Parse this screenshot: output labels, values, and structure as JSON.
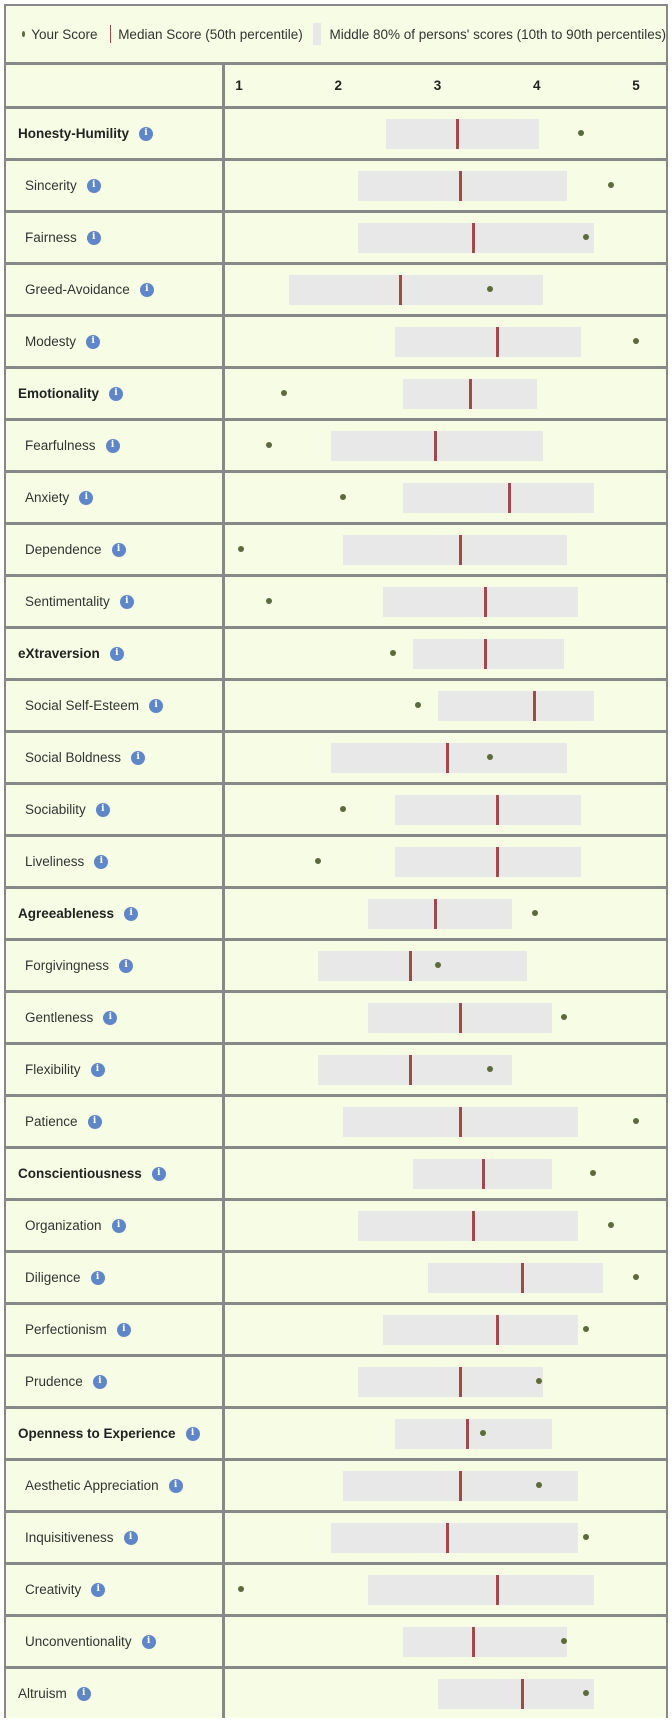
{
  "legend": {
    "your_score": "Your Score",
    "median": "Median Score (50th percentile)",
    "middle": "Middle 80% of persons' scores (10th to 90th percentiles)"
  },
  "colors": {
    "score_dot": "#5b6b3a",
    "median_line": "#a04a4a",
    "range_box": "#e8e8e8",
    "cell_background": "#f6fde4",
    "info_icon": "#5f86c9"
  },
  "chart_data": {
    "type": "box-range",
    "xlim": [
      1,
      5
    ],
    "ticks": [
      1,
      2,
      3,
      4,
      5
    ],
    "tick_labels": [
      "1",
      "2",
      "3",
      "4",
      "5"
    ],
    "traits": [
      {
        "name": "Honesty-Humility",
        "level": "domain",
        "p10": 2.48,
        "median": 3.2,
        "p90": 4.02,
        "score": 4.45
      },
      {
        "name": "Sincerity",
        "level": "facet",
        "p10": 2.2,
        "median": 3.23,
        "p90": 4.3,
        "score": 4.75
      },
      {
        "name": "Fairness",
        "level": "facet",
        "p10": 2.2,
        "median": 3.36,
        "p90": 4.58,
        "score": 4.5
      },
      {
        "name": "Greed-Avoidance",
        "level": "facet",
        "p10": 1.5,
        "median": 2.63,
        "p90": 4.06,
        "score": 3.53
      },
      {
        "name": "Modesty",
        "level": "facet",
        "p10": 2.57,
        "median": 3.6,
        "p90": 4.45,
        "score": 5.0
      },
      {
        "name": "Emotionality",
        "level": "domain",
        "p10": 2.65,
        "median": 3.33,
        "p90": 4.0,
        "score": 1.45
      },
      {
        "name": "Fearfulness",
        "level": "facet",
        "p10": 1.93,
        "median": 2.98,
        "p90": 4.06,
        "score": 1.3
      },
      {
        "name": "Anxiety",
        "level": "facet",
        "p10": 2.65,
        "median": 3.73,
        "p90": 4.58,
        "score": 2.05
      },
      {
        "name": "Dependence",
        "level": "facet",
        "p10": 2.05,
        "median": 3.23,
        "p90": 4.3,
        "score": 1.02
      },
      {
        "name": "Sentimentality",
        "level": "facet",
        "p10": 2.45,
        "median": 3.48,
        "p90": 4.42,
        "score": 1.3
      },
      {
        "name": "eXtraversion",
        "level": "domain",
        "p10": 2.75,
        "median": 3.48,
        "p90": 4.27,
        "score": 2.55
      },
      {
        "name": "Social Self-Esteem",
        "level": "facet",
        "p10": 3.0,
        "median": 3.98,
        "p90": 4.58,
        "score": 2.8
      },
      {
        "name": "Social Boldness",
        "level": "facet",
        "p10": 1.93,
        "median": 3.1,
        "p90": 4.3,
        "score": 3.53
      },
      {
        "name": "Sociability",
        "level": "facet",
        "p10": 2.57,
        "median": 3.6,
        "p90": 4.45,
        "score": 2.05
      },
      {
        "name": "Liveliness",
        "level": "facet",
        "p10": 2.57,
        "median": 3.6,
        "p90": 4.45,
        "score": 1.8
      },
      {
        "name": "Agreeableness",
        "level": "domain",
        "p10": 2.3,
        "median": 2.98,
        "p90": 3.75,
        "score": 3.98
      },
      {
        "name": "Forgivingness",
        "level": "facet",
        "p10": 1.8,
        "median": 2.73,
        "p90": 3.9,
        "score": 3.0
      },
      {
        "name": "Gentleness",
        "level": "facet",
        "p10": 2.3,
        "median": 3.23,
        "p90": 4.15,
        "score": 4.27
      },
      {
        "name": "Flexibility",
        "level": "facet",
        "p10": 1.8,
        "median": 2.73,
        "p90": 3.75,
        "score": 3.53
      },
      {
        "name": "Patience",
        "level": "facet",
        "p10": 2.05,
        "median": 3.23,
        "p90": 4.42,
        "score": 5.0
      },
      {
        "name": "Conscientiousness",
        "level": "domain",
        "p10": 2.75,
        "median": 3.46,
        "p90": 4.15,
        "score": 4.57
      },
      {
        "name": "Organization",
        "level": "facet",
        "p10": 2.2,
        "median": 3.36,
        "p90": 4.42,
        "score": 4.75
      },
      {
        "name": "Diligence",
        "level": "facet",
        "p10": 2.9,
        "median": 3.86,
        "p90": 4.67,
        "score": 5.0
      },
      {
        "name": "Perfectionism",
        "level": "facet",
        "p10": 2.45,
        "median": 3.6,
        "p90": 4.42,
        "score": 4.5
      },
      {
        "name": "Prudence",
        "level": "facet",
        "p10": 2.2,
        "median": 3.23,
        "p90": 4.06,
        "score": 4.02
      },
      {
        "name": "Openness to Experience",
        "level": "domain",
        "p10": 2.57,
        "median": 3.3,
        "p90": 4.15,
        "score": 3.46
      },
      {
        "name": "Aesthetic Appreciation",
        "level": "facet",
        "p10": 2.05,
        "median": 3.23,
        "p90": 4.42,
        "score": 4.02
      },
      {
        "name": "Inquisitiveness",
        "level": "facet",
        "p10": 1.93,
        "median": 3.1,
        "p90": 4.42,
        "score": 4.5
      },
      {
        "name": "Creativity",
        "level": "facet",
        "p10": 2.3,
        "median": 3.6,
        "p90": 4.58,
        "score": 1.02
      },
      {
        "name": "Unconventionality",
        "level": "facet",
        "p10": 2.65,
        "median": 3.36,
        "p90": 4.3,
        "score": 4.27
      },
      {
        "name": "Altruism",
        "level": "other",
        "p10": 3.0,
        "median": 3.86,
        "p90": 4.58,
        "score": 4.5
      }
    ]
  }
}
